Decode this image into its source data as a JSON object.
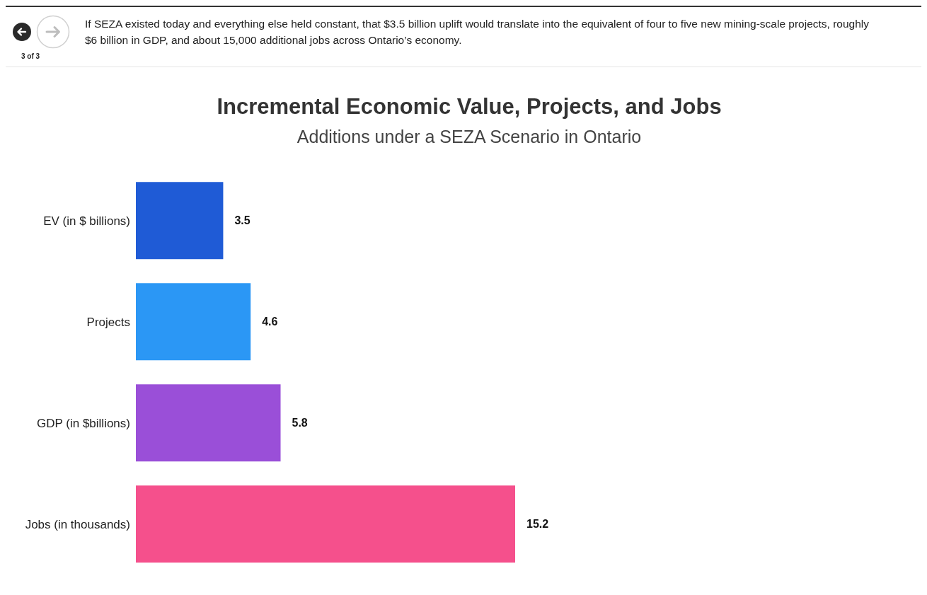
{
  "chart_data": {
    "type": "bar",
    "orientation": "horizontal",
    "title": "Incremental Economic Value, Projects, and Jobs",
    "subtitle": "Additions under a SEZA Scenario in Ontario",
    "categories": [
      "EV (in $ billions)",
      "Projects",
      "GDP (in $billions)",
      "Jobs (in thousands)"
    ],
    "values": [
      3.5,
      4.6,
      5.8,
      15.2
    ],
    "colors": [
      "#1f5bd6",
      "#2b97f5",
      "#9a4fd8",
      "#f5508c"
    ],
    "data_labels": true,
    "annotations": [
      "If SEZA existed today and everything else held constant, that $3.5 billion uplift would translate into the equivalent of four to five new mining-scale projects, roughly $6 billion in GDP, and about 15,000 additional jobs across Ontario’s economy.",
      "3 of 3"
    ]
  }
}
